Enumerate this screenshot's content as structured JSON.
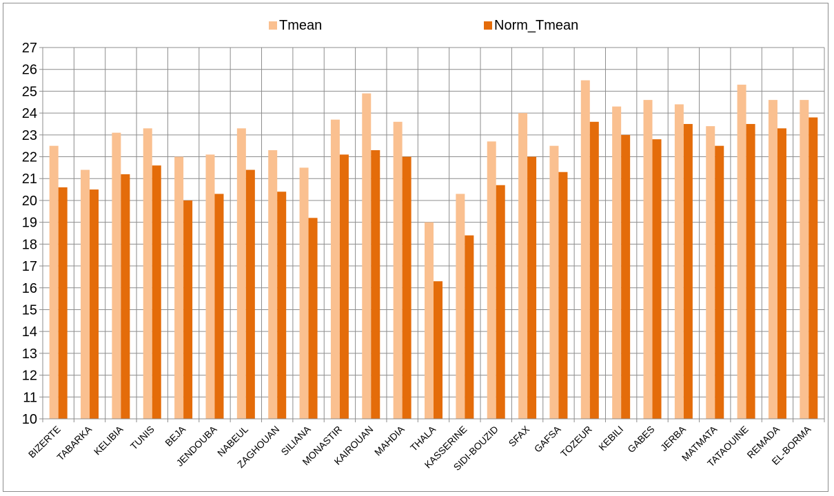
{
  "chart_data": {
    "type": "bar",
    "title": "",
    "xlabel": "",
    "ylabel": "",
    "ylim": [
      10,
      27
    ],
    "yticks": [
      10,
      11,
      12,
      13,
      14,
      15,
      16,
      17,
      18,
      19,
      20,
      21,
      22,
      23,
      24,
      25,
      26,
      27
    ],
    "grid": true,
    "legend_position": "top",
    "categories": [
      "BIZERTE",
      "TABARKA",
      "KELIBIA",
      "TUNIS",
      "BEJA",
      "JENDOUBA",
      "NABEUL",
      "ZAGHOUAN",
      "SILIANA",
      "MONASTIR",
      "KAIROUAN",
      "MAHDIA",
      "THALA",
      "KASSERINE",
      "SIDI-BOUZID",
      "SFAX",
      "GAFSA",
      "TOZEUR",
      "KEBILI",
      "GABES",
      "JERBA",
      "MATMATA",
      "TATAOUINE",
      "REMADA",
      "EL-BORMA"
    ],
    "series": [
      {
        "name": "Tmean",
        "color": "#FAC090",
        "values": [
          22.5,
          21.4,
          23.1,
          23.3,
          22.0,
          22.1,
          23.3,
          22.3,
          21.5,
          23.7,
          24.9,
          23.6,
          19.0,
          20.3,
          22.7,
          24.0,
          22.5,
          25.5,
          24.3,
          24.6,
          24.4,
          23.4,
          25.3,
          24.6,
          24.6
        ]
      },
      {
        "name": "Norm_Tmean",
        "color": "#E46C0A",
        "values": [
          20.6,
          20.5,
          21.2,
          21.6,
          20.0,
          20.3,
          21.4,
          20.4,
          19.2,
          22.1,
          22.3,
          22.0,
          16.3,
          18.4,
          20.7,
          22.0,
          21.3,
          23.6,
          23.0,
          22.8,
          23.5,
          22.5,
          23.5,
          23.3,
          23.8
        ]
      }
    ]
  }
}
